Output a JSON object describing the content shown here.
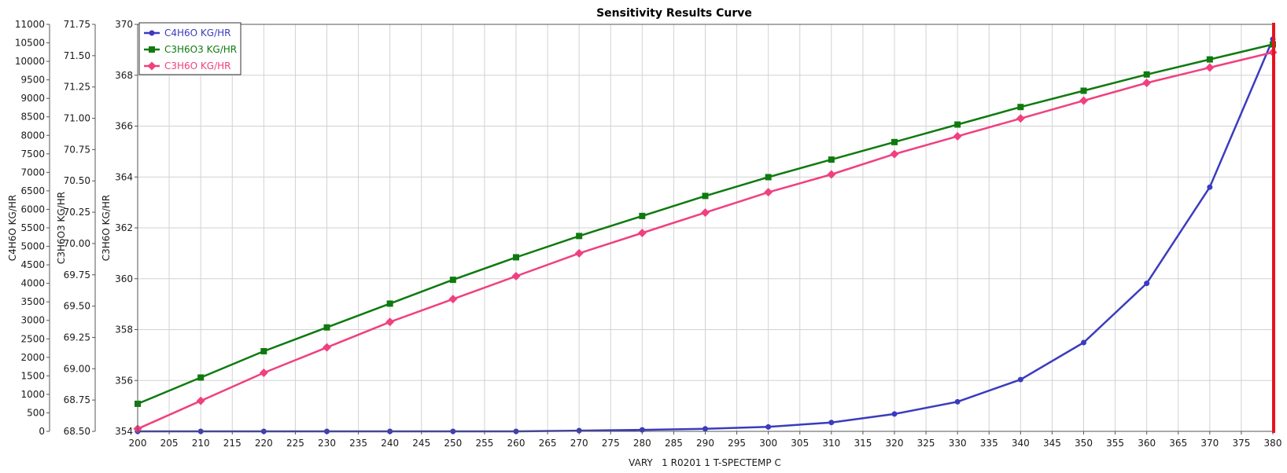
{
  "chart_data": {
    "type": "line",
    "title": "Sensitivity Results Curve",
    "xlabel": "VARY   1 R0201 1 T-SPECTEMP C",
    "xlim": [
      200,
      380
    ],
    "x_major_ticks": [
      200,
      205,
      210,
      215,
      220,
      225,
      230,
      235,
      240,
      245,
      250,
      255,
      260,
      265,
      270,
      275,
      280,
      285,
      290,
      295,
      300,
      305,
      310,
      315,
      320,
      325,
      330,
      335,
      340,
      345,
      350,
      355,
      360,
      365,
      370,
      375,
      380
    ],
    "x": [
      200,
      210,
      220,
      230,
      240,
      250,
      260,
      270,
      280,
      290,
      300,
      310,
      320,
      330,
      340,
      350,
      360,
      370,
      380
    ],
    "y_axes": [
      {
        "id": "c4",
        "label": "C4H6O KG/HR",
        "ylim": [
          0,
          11000
        ],
        "ticks": [
          "0",
          "500",
          "1000",
          "1500",
          "2000",
          "2500",
          "3000",
          "3500",
          "4000",
          "4500",
          "5000",
          "5500",
          "6000",
          "6500",
          "7000",
          "7500",
          "8000",
          "8500",
          "9000",
          "9500",
          "10000",
          "10500",
          "11000"
        ]
      },
      {
        "id": "c3o3",
        "label": "C3H6O3 KG/HR",
        "ylim": [
          68.5,
          71.75
        ],
        "ticks": [
          "68.50",
          "68.75",
          "69.00",
          "69.25",
          "69.50",
          "69.75",
          "70.00",
          "70.25",
          "70.50",
          "70.75",
          "71.00",
          "71.25",
          "71.50",
          "71.75"
        ]
      },
      {
        "id": "c3o",
        "label": "C3H6O KG/HR",
        "ylim": [
          354,
          370
        ],
        "ticks": [
          "354",
          "356",
          "358",
          "360",
          "362",
          "364",
          "366",
          "368",
          "370"
        ]
      }
    ],
    "series": [
      {
        "name": "C4H6O KG/HR",
        "axis": "c4",
        "color": "#3b3bbf",
        "marker": "circle",
        "values": [
          0,
          0,
          0,
          0,
          0,
          0,
          0,
          20,
          40,
          70,
          120,
          240,
          470,
          800,
          1400,
          2400,
          4000,
          6600,
          10600
        ]
      },
      {
        "name": "C3H6O3 KG/HR",
        "axis": "c3o3",
        "color": "#0f7a0f",
        "marker": "square",
        "values": [
          68.72,
          68.93,
          69.14,
          69.33,
          69.52,
          69.71,
          69.89,
          70.06,
          70.22,
          70.38,
          70.53,
          70.67,
          70.81,
          70.95,
          71.09,
          71.22,
          71.35,
          71.47,
          71.59
        ]
      },
      {
        "name": "C3H6O KG/HR",
        "axis": "c3o",
        "color": "#f0407f",
        "marker": "diamond",
        "values": [
          354.1,
          355.2,
          356.3,
          357.3,
          358.3,
          359.2,
          360.1,
          361.0,
          361.8,
          362.6,
          363.4,
          364.1,
          364.9,
          365.6,
          366.3,
          367.0,
          367.7,
          368.3,
          368.9
        ]
      }
    ],
    "cursor": {
      "x": 380,
      "color": "#e8131d"
    },
    "grid": true,
    "legend_position": "top-left"
  }
}
